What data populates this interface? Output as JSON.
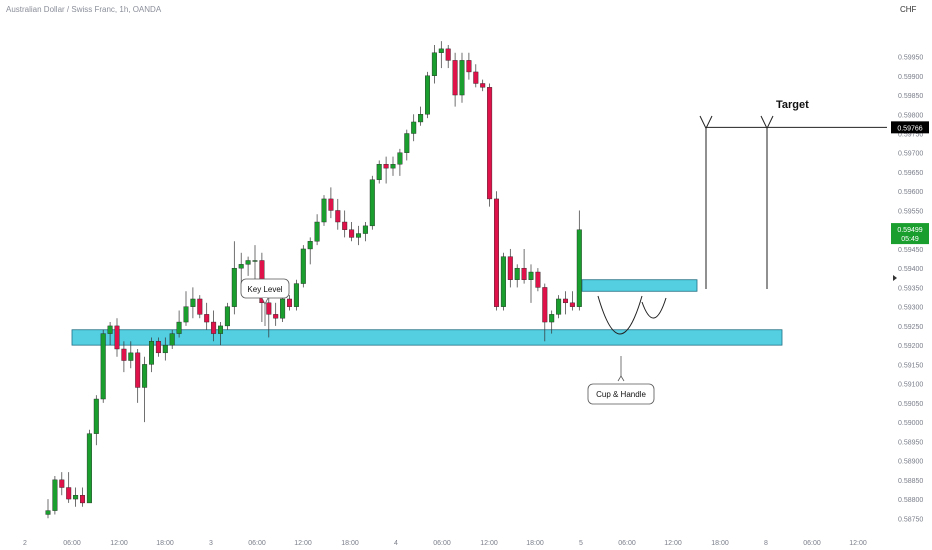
{
  "header": {
    "symbol_title": "Australian Dollar / Swiss Franc, 1h, OANDA",
    "currency": "CHF"
  },
  "price_axis": {
    "labels": [
      "0.59950",
      "0.59900",
      "0.59850",
      "0.59800",
      "0.59750",
      "0.59700",
      "0.59650",
      "0.59600",
      "0.59550",
      "0.59500",
      "0.59450",
      "0.59400",
      "0.59350",
      "0.59300",
      "0.59250",
      "0.59200",
      "0.59150",
      "0.59100",
      "0.59050",
      "0.59000",
      "0.58950",
      "0.58900",
      "0.58850",
      "0.58800",
      "0.58750"
    ],
    "target_tag": "0.59766",
    "current_tag": "0.59499",
    "countdown": "05:49"
  },
  "time_axis": {
    "labels": [
      "2",
      "06:00",
      "12:00",
      "18:00",
      "3",
      "06:00",
      "12:00",
      "18:00",
      "4",
      "06:00",
      "12:00",
      "18:00",
      "5",
      "06:00",
      "12:00",
      "18:00",
      "8",
      "06:00",
      "12:00"
    ]
  },
  "annotations": {
    "key_level": "Key Level",
    "cup_handle": "Cup & Handle",
    "target": "Target"
  },
  "colors": {
    "bull": "#1a9e2e",
    "bear": "#e0124a",
    "zone_fill": "#36c6dc",
    "zone_border": "#1f6f84",
    "axis_text": "#7a7e8a",
    "current_tag_bg": "#1a9e2e",
    "target_tag_bg": "#000000"
  },
  "chart_data": {
    "type": "candlestick",
    "title": "Australian Dollar / Swiss Franc, 1h, OANDA",
    "ylim": [
      0.5873,
      0.5998
    ],
    "ohlc": [
      [
        0.5876,
        0.588,
        0.5875,
        0.5877
      ],
      [
        0.5877,
        0.5886,
        0.5876,
        0.5885
      ],
      [
        0.5885,
        0.5887,
        0.5881,
        0.5883
      ],
      [
        0.5883,
        0.5887,
        0.5879,
        0.588
      ],
      [
        0.588,
        0.5883,
        0.5878,
        0.5881
      ],
      [
        0.5881,
        0.5883,
        0.5878,
        0.5879
      ],
      [
        0.5879,
        0.5898,
        0.5879,
        0.5897
      ],
      [
        0.5897,
        0.5907,
        0.5894,
        0.5906
      ],
      [
        0.5906,
        0.5924,
        0.5905,
        0.5923
      ],
      [
        0.5923,
        0.5926,
        0.592,
        0.5925
      ],
      [
        0.5925,
        0.5927,
        0.5917,
        0.5919
      ],
      [
        0.5919,
        0.5921,
        0.5913,
        0.5916
      ],
      [
        0.5916,
        0.5921,
        0.5914,
        0.5918
      ],
      [
        0.5918,
        0.5919,
        0.5905,
        0.5909
      ],
      [
        0.5909,
        0.5917,
        0.59,
        0.5915
      ],
      [
        0.5915,
        0.5922,
        0.5913,
        0.5921
      ],
      [
        0.5921,
        0.5922,
        0.5917,
        0.5918
      ],
      [
        0.5918,
        0.5922,
        0.5916,
        0.592
      ],
      [
        0.592,
        0.5924,
        0.5919,
        0.5923
      ],
      [
        0.5923,
        0.5929,
        0.5922,
        0.5926
      ],
      [
        0.5926,
        0.5934,
        0.5925,
        0.593
      ],
      [
        0.593,
        0.5935,
        0.5927,
        0.5932
      ],
      [
        0.5932,
        0.5933,
        0.5927,
        0.5928
      ],
      [
        0.5928,
        0.5931,
        0.5924,
        0.5926
      ],
      [
        0.5926,
        0.5929,
        0.5921,
        0.5923
      ],
      [
        0.5923,
        0.5926,
        0.592,
        0.5925
      ],
      [
        0.5925,
        0.5931,
        0.5924,
        0.593
      ],
      [
        0.593,
        0.5947,
        0.5928,
        0.594
      ],
      [
        0.594,
        0.5944,
        0.5936,
        0.5941
      ],
      [
        0.5941,
        0.5943,
        0.5938,
        0.5942
      ],
      [
        0.5942,
        0.5946,
        0.5937,
        0.5942
      ],
      [
        0.5942,
        0.5944,
        0.5926,
        0.5931
      ],
      [
        0.5931,
        0.5934,
        0.5922,
        0.5928
      ],
      [
        0.5928,
        0.5931,
        0.5925,
        0.5927
      ],
      [
        0.5927,
        0.5934,
        0.5926,
        0.5932
      ],
      [
        0.5932,
        0.5933,
        0.5929,
        0.593
      ],
      [
        0.593,
        0.5937,
        0.5929,
        0.5936
      ],
      [
        0.5936,
        0.5946,
        0.5935,
        0.5945
      ],
      [
        0.5945,
        0.5948,
        0.5941,
        0.5947
      ],
      [
        0.5947,
        0.5954,
        0.5946,
        0.5952
      ],
      [
        0.5952,
        0.5959,
        0.5951,
        0.5958
      ],
      [
        0.5958,
        0.5961,
        0.5953,
        0.5955
      ],
      [
        0.5955,
        0.5958,
        0.595,
        0.5952
      ],
      [
        0.5952,
        0.5955,
        0.5948,
        0.595
      ],
      [
        0.595,
        0.5952,
        0.5947,
        0.5948
      ],
      [
        0.5948,
        0.5951,
        0.5946,
        0.5949
      ],
      [
        0.5949,
        0.5952,
        0.5947,
        0.5951
      ],
      [
        0.5951,
        0.5964,
        0.595,
        0.5963
      ],
      [
        0.5963,
        0.5968,
        0.5962,
        0.5967
      ],
      [
        0.5967,
        0.5969,
        0.5962,
        0.5966
      ],
      [
        0.5966,
        0.5969,
        0.5964,
        0.5967
      ],
      [
        0.5967,
        0.5971,
        0.5964,
        0.597
      ],
      [
        0.597,
        0.5976,
        0.5968,
        0.5975
      ],
      [
        0.5975,
        0.598,
        0.5973,
        0.5978
      ],
      [
        0.5978,
        0.5982,
        0.5977,
        0.598
      ],
      [
        0.598,
        0.5991,
        0.5979,
        0.599
      ],
      [
        0.599,
        0.5998,
        0.5988,
        0.5996
      ],
      [
        0.5996,
        0.5999,
        0.5992,
        0.5997
      ],
      [
        0.5997,
        0.5998,
        0.5992,
        0.5994
      ],
      [
        0.5994,
        0.5996,
        0.5982,
        0.5985
      ],
      [
        0.5985,
        0.5996,
        0.5983,
        0.5994
      ],
      [
        0.5994,
        0.5996,
        0.5989,
        0.5991
      ],
      [
        0.5991,
        0.5993,
        0.5987,
        0.5988
      ],
      [
        0.5988,
        0.5989,
        0.5986,
        0.5987
      ],
      [
        0.5987,
        0.5988,
        0.5956,
        0.5958
      ],
      [
        0.5958,
        0.596,
        0.5929,
        0.593
      ],
      [
        0.593,
        0.5944,
        0.5929,
        0.5943
      ],
      [
        0.5943,
        0.5945,
        0.5935,
        0.5937
      ],
      [
        0.5937,
        0.5941,
        0.5935,
        0.594
      ],
      [
        0.594,
        0.5945,
        0.5936,
        0.5937
      ],
      [
        0.5937,
        0.5941,
        0.5931,
        0.5939
      ],
      [
        0.5939,
        0.594,
        0.5934,
        0.5935
      ],
      [
        0.5935,
        0.5936,
        0.5921,
        0.5926
      ],
      [
        0.5926,
        0.5929,
        0.5923,
        0.5928
      ],
      [
        0.5928,
        0.5933,
        0.5927,
        0.5932
      ],
      [
        0.5932,
        0.5934,
        0.5928,
        0.5931
      ],
      [
        0.5931,
        0.5934,
        0.5929,
        0.593
      ],
      [
        0.593,
        0.5955,
        0.5929,
        0.595
      ]
    ],
    "zones": [
      {
        "top": 0.5924,
        "bottom": 0.592
      },
      {
        "top": 0.5937,
        "bottom": 0.5934
      }
    ],
    "target_level": 0.59766,
    "current_price": 0.59499
  }
}
